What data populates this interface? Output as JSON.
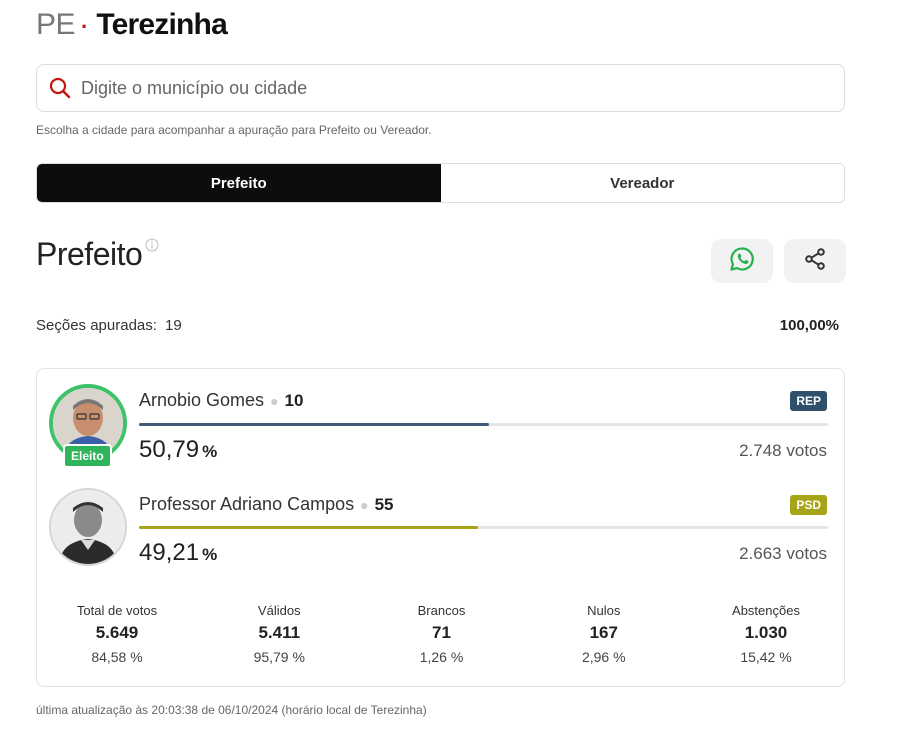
{
  "header": {
    "uf": "PE",
    "separator": "·",
    "city": "Terezinha"
  },
  "search": {
    "placeholder": "Digite o município ou cidade",
    "value": "",
    "icon": "search-icon",
    "icon_color": "#c4170c"
  },
  "hint": "Escolha a cidade para acompanhar a apuração para Prefeito ou Vereador.",
  "tabs": [
    {
      "label": "Prefeito",
      "active": true
    },
    {
      "label": "Vereador",
      "active": false
    }
  ],
  "section": {
    "title": "Prefeito"
  },
  "actions": {
    "whatsapp_icon": "whatsapp-icon",
    "share_icon": "share-icon"
  },
  "progress": {
    "secoes_label": "Seções apuradas:",
    "secoes_value": "19",
    "percent": "100,00%"
  },
  "candidates": [
    {
      "name": "Arnobio Gomes",
      "number": "10",
      "party": "REP",
      "party_color": "#2f4f6b",
      "bar_color": "#3d5a78",
      "percent": "50,79",
      "percent_unit": "%",
      "share": 0.5079,
      "votes": "2.748 votos",
      "elected_label": "Eleito",
      "elected": true
    },
    {
      "name": "Professor Adriano Campos",
      "number": "55",
      "party": "PSD",
      "party_color": "#a7a517",
      "bar_color": "#a7a517",
      "percent": "49,21",
      "percent_unit": "%",
      "share": 0.4921,
      "votes": "2.663 votos",
      "elected": false
    }
  ],
  "stats": [
    {
      "label": "Total de votos",
      "value": "5.649",
      "pct": "84,58 %"
    },
    {
      "label": "Válidos",
      "value": "5.411",
      "pct": "95,79 %"
    },
    {
      "label": "Brancos",
      "value": "71",
      "pct": "1,26 %"
    },
    {
      "label": "Nulos",
      "value": "167",
      "pct": "2,96 %"
    },
    {
      "label": "Abstenções",
      "value": "1.030",
      "pct": "15,42 %"
    }
  ],
  "footer": "última atualização às 20:03:38 de 06/10/2024 (horário local de Terezinha)"
}
